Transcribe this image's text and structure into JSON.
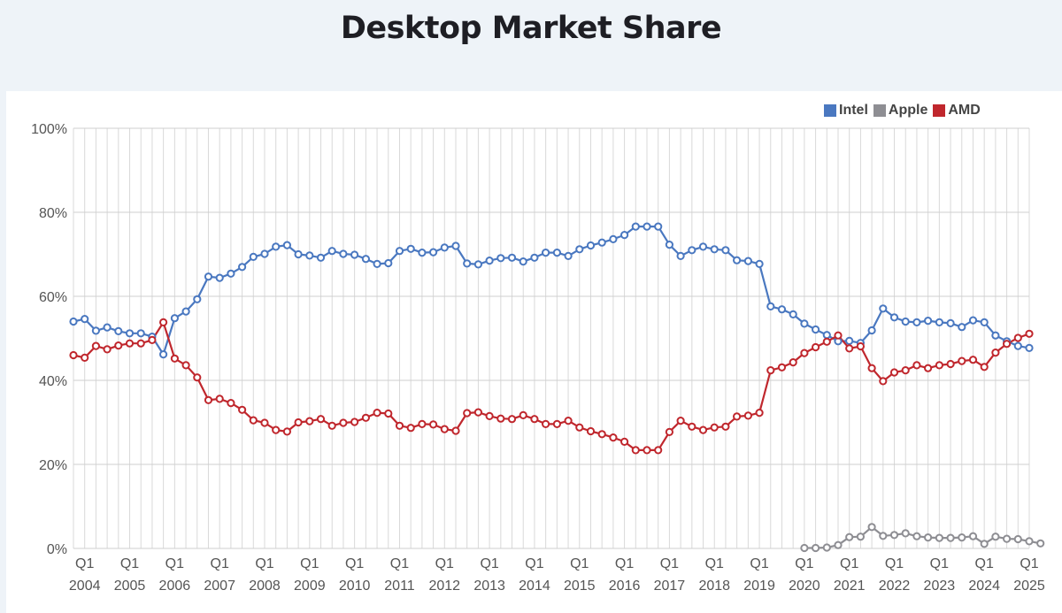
{
  "page": {
    "title": "Desktop Market Share"
  },
  "colors": {
    "intel": "#4a78c0",
    "apple": "#8e8e93",
    "amd": "#c0272d",
    "grid": "#d9d9d9"
  },
  "chart_data": {
    "type": "line",
    "title": "Desktop Market Share",
    "xlabel": "",
    "ylabel": "",
    "ylim": [
      0,
      100
    ],
    "y_ticks": [
      "0%",
      "20%",
      "40%",
      "60%",
      "80%",
      "100%"
    ],
    "x_tick_quarter_label": "Q1",
    "x_tick_years": [
      "2004",
      "2005",
      "2006",
      "2007",
      "2008",
      "2009",
      "2010",
      "2011",
      "2012",
      "2013",
      "2014",
      "2015",
      "2016",
      "2017",
      "2018",
      "2019",
      "2020",
      "2021",
      "2022",
      "2023",
      "2024",
      "2025"
    ],
    "grid": true,
    "legend_position": "top-right",
    "x_range": [
      "2003 Q4",
      "2025 Q1"
    ],
    "series": [
      {
        "name": "Intel",
        "color": "#4a78c0",
        "values": [
          54.0,
          54.6,
          51.8,
          52.6,
          51.7,
          51.2,
          51.2,
          50.4,
          46.2,
          54.8,
          56.4,
          59.3,
          64.7,
          64.4,
          65.4,
          67.0,
          69.4,
          70.1,
          71.8,
          72.2,
          70.0,
          69.7,
          69.2,
          70.8,
          70.1,
          69.9,
          68.9,
          67.7,
          67.9,
          70.8,
          71.3,
          70.4,
          70.5,
          71.6,
          72.0,
          67.8,
          67.6,
          68.5,
          69.1,
          69.2,
          68.3,
          69.2,
          70.4,
          70.4,
          69.6,
          71.2,
          72.1,
          72.8,
          73.6,
          74.6,
          76.6,
          76.6,
          76.6,
          72.3,
          69.6,
          71.0,
          71.8,
          71.2,
          71.0,
          68.6,
          68.4,
          67.7,
          57.6,
          56.9,
          55.7,
          53.5,
          52.1,
          50.8,
          49.3,
          49.4,
          48.9,
          51.9,
          57.1,
          55.0,
          54.0,
          53.8,
          54.2,
          53.8,
          53.6,
          52.7,
          54.3,
          53.8,
          50.7,
          49.3,
          48.2,
          47.7
        ],
        "first_index": 0
      },
      {
        "name": "Apple",
        "color": "#8e8e93",
        "values": [
          0.1,
          0.1,
          0.2,
          0.8,
          2.7,
          2.8,
          5.1,
          3.0,
          3.2,
          3.6,
          2.9,
          2.6,
          2.5,
          2.5,
          2.6,
          2.9,
          1.1,
          2.8,
          2.3,
          2.2,
          1.7,
          1.2
        ],
        "first_index": 65
      },
      {
        "name": "AMD",
        "color": "#c0272d",
        "values": [
          46.0,
          45.4,
          48.2,
          47.4,
          48.3,
          48.8,
          48.8,
          49.6,
          53.8,
          45.2,
          43.6,
          40.7,
          35.3,
          35.6,
          34.6,
          33.0,
          30.5,
          29.9,
          28.2,
          27.8,
          30.0,
          30.3,
          30.8,
          29.2,
          29.9,
          30.1,
          31.1,
          32.3,
          32.1,
          29.2,
          28.7,
          29.6,
          29.5,
          28.4,
          28.0,
          32.2,
          32.4,
          31.5,
          30.9,
          30.8,
          31.7,
          30.8,
          29.6,
          29.6,
          30.4,
          28.8,
          27.9,
          27.2,
          26.4,
          25.4,
          23.4,
          23.4,
          23.4,
          27.7,
          30.4,
          29.0,
          28.2,
          28.8,
          29.0,
          31.4,
          31.6,
          32.3,
          42.4,
          43.1,
          44.3,
          46.5,
          47.9,
          49.2,
          50.7,
          47.6,
          48.1,
          42.9,
          39.8,
          41.9,
          42.4,
          43.6,
          42.9,
          43.6,
          43.9,
          44.6,
          44.9,
          43.2,
          46.6,
          48.7,
          50.1,
          51.1
        ],
        "first_index": 0
      }
    ]
  }
}
